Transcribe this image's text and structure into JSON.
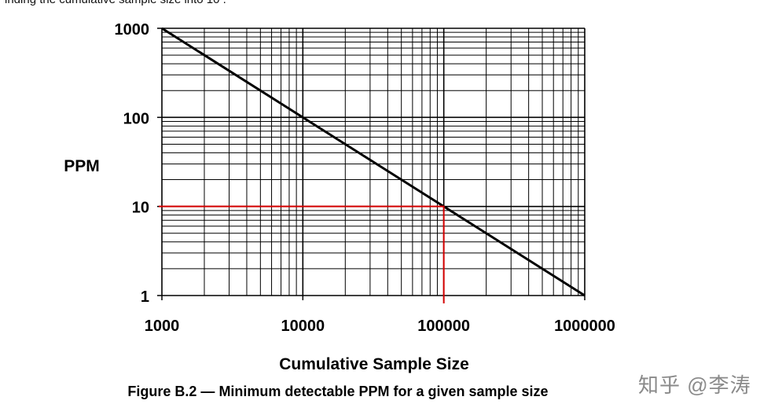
{
  "header": {
    "cut_text": "inding the cumulative sample size into 10 ."
  },
  "chart_data": {
    "type": "line",
    "scale": "log-log",
    "title": "",
    "xlabel": "Cumulative Sample Size",
    "ylabel": "PPM",
    "xlim": [
      1000,
      1000000
    ],
    "ylim": [
      1,
      1000
    ],
    "x_tick_labels": [
      "1000",
      "10000",
      "100000",
      "1000000"
    ],
    "y_tick_labels": [
      "1000",
      "100",
      "10",
      "1"
    ],
    "grid": true,
    "series": [
      {
        "name": "Minimum detectable PPM",
        "color": "#000000",
        "x": [
          1000,
          1000000
        ],
        "y": [
          1000,
          1
        ]
      }
    ],
    "annotations": [
      {
        "name": "reference lines at 10 PPM / 100000 samples",
        "color": "#d40000",
        "x": [
          1000,
          100000,
          100000
        ],
        "y": [
          10,
          10,
          1
        ]
      }
    ]
  },
  "caption": "Figure B.2 — Minimum detectable PPM for a given sample size",
  "watermark": "知乎 @李涛"
}
